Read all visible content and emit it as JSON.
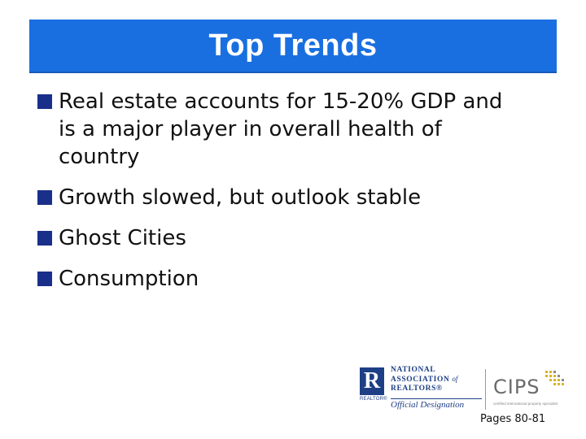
{
  "header": {
    "title": "Top Trends"
  },
  "bullets": [
    {
      "text": "Real estate accounts for 15-20% GDP and is a major player in overall health of country"
    },
    {
      "text": "Growth slowed, but outlook stable"
    },
    {
      "text": "Ghost Cities"
    },
    {
      "text": "Consumption"
    }
  ],
  "logos": {
    "nar_mark": "R",
    "nar_realtor": "REALTOR®",
    "nar_line1": "NATIONAL",
    "nar_line2": "ASSOCIATION",
    "nar_of": "of",
    "nar_line3": "REALTORS®",
    "nar_designation": "Official Designation",
    "cips": "CIPS",
    "cips_tagline": "certified international property specialist"
  },
  "footer": {
    "page_ref": "Pages 80-81"
  },
  "colors": {
    "title_bar": "#1a6fe0",
    "title_text": "#ffffff",
    "bullet_marker": "#1a2f8a",
    "nar_blue": "#1e3f86",
    "cips_gold": "#d9b526"
  }
}
